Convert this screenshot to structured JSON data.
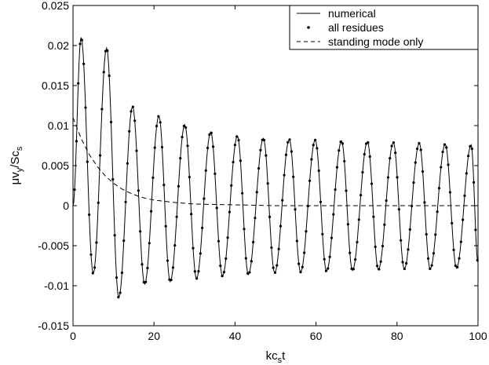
{
  "chart_data": {
    "type": "line",
    "title": "",
    "xlabel": "kc_s t",
    "ylabel": "μv_y/Sc_s",
    "xlim": [
      0,
      100
    ],
    "ylim": [
      -0.015,
      0.025
    ],
    "xticks": [
      0,
      20,
      40,
      60,
      80,
      100
    ],
    "xtick_labels": [
      "0",
      "20",
      "40",
      "60",
      "80",
      "100"
    ],
    "yticks": [
      -0.015,
      -0.01,
      -0.005,
      0,
      0.005,
      0.01,
      0.015,
      0.02,
      0.025
    ],
    "ytick_labels": [
      "-0.015",
      "-0.01",
      "-0.005",
      "0",
      "0.005",
      "0.01",
      "0.015",
      "0.02",
      "0.025"
    ],
    "grid": false,
    "legend_position": "top-right",
    "series": [
      {
        "name": "numerical",
        "style": "solid",
        "color": "#000000",
        "description_values": {
          "period": 6.5,
          "initial_amplitude": 0.021,
          "final_amplitude": 0.0076,
          "offset": 0.0
        },
        "peaks": [
          [
            2.0,
            0.021
          ],
          [
            8.3,
            0.0197
          ],
          [
            14.7,
            0.0124
          ],
          [
            21.2,
            0.0112
          ],
          [
            27.6,
            0.0101
          ],
          [
            34.0,
            0.0092
          ],
          [
            40.6,
            0.0087
          ],
          [
            47.0,
            0.0084
          ],
          [
            53.4,
            0.0083
          ],
          [
            59.8,
            0.0082
          ],
          [
            66.3,
            0.0081
          ],
          [
            72.7,
            0.008
          ],
          [
            79.1,
            0.0079
          ],
          [
            85.5,
            0.0078
          ],
          [
            91.9,
            0.0077
          ],
          [
            98.3,
            0.0076
          ]
        ],
        "troughs": [
          [
            5.0,
            -0.0085
          ],
          [
            11.3,
            -0.0115
          ],
          [
            17.7,
            -0.0098
          ],
          [
            24.0,
            -0.0095
          ],
          [
            30.5,
            -0.0091
          ],
          [
            36.9,
            -0.0088
          ],
          [
            43.3,
            -0.0086
          ],
          [
            49.8,
            -0.0084
          ],
          [
            56.2,
            -0.0083
          ],
          [
            62.6,
            -0.0082
          ],
          [
            69.0,
            -0.0081
          ],
          [
            75.4,
            -0.008
          ],
          [
            81.8,
            -0.0079
          ],
          [
            88.2,
            -0.0079
          ],
          [
            94.7,
            -0.0078
          ],
          [
            100.0,
            -0.0071
          ]
        ]
      },
      {
        "name": "all residues",
        "style": "dots",
        "color": "#000000"
      },
      {
        "name": "standing mode only",
        "style": "dashed",
        "color": "#000000",
        "x": [
          0,
          2,
          4,
          6,
          8,
          10,
          12,
          14,
          16,
          18,
          20,
          25,
          30,
          40,
          50,
          60,
          70,
          80,
          90,
          100
        ],
        "values": [
          0.011,
          0.0084,
          0.0064,
          0.0049,
          0.0037,
          0.0028,
          0.0021,
          0.0016,
          0.0012,
          0.0009,
          0.0007,
          0.0004,
          0.0002,
          0.0001,
          0.0,
          0.0,
          0.0,
          0.0,
          0.0,
          0.0
        ]
      }
    ]
  }
}
